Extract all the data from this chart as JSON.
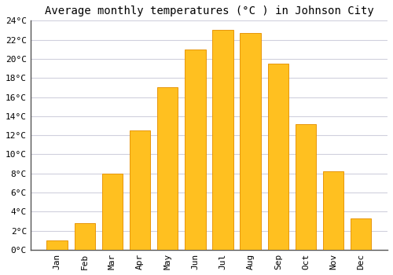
{
  "title": "Average monthly temperatures (°C ) in Johnson City",
  "months": [
    "Jan",
    "Feb",
    "Mar",
    "Apr",
    "May",
    "Jun",
    "Jul",
    "Aug",
    "Sep",
    "Oct",
    "Nov",
    "Dec"
  ],
  "values": [
    1.0,
    2.8,
    8.0,
    12.5,
    17.0,
    21.0,
    23.0,
    22.7,
    19.5,
    13.2,
    8.2,
    3.3
  ],
  "bar_color": "#FFC020",
  "bar_edge_color": "#E8960A",
  "background_color": "#FFFFFF",
  "grid_color": "#D0D0DD",
  "ylim": [
    0,
    24
  ],
  "ytick_step": 2,
  "title_fontsize": 10,
  "tick_fontsize": 8,
  "font_family": "monospace"
}
